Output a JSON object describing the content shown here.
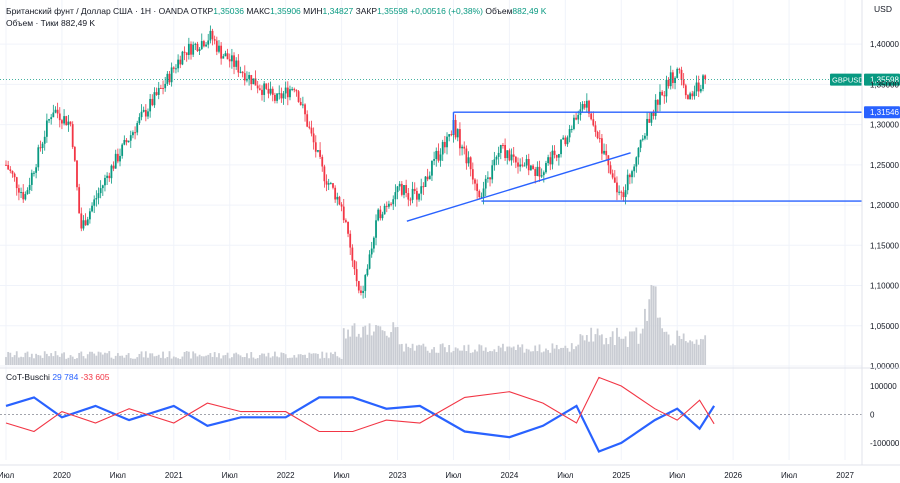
{
  "header": {
    "symbol_line": "Британский фунт / Доллар США · 1Н · OANDA",
    "open_label": "ОТКР",
    "open": "1,35036",
    "high_label": "МАКС",
    "high": "1,35906",
    "low_label": "МИН",
    "low": "1,34827",
    "close_label": "ЗАКР",
    "close": "1,35598",
    "change": "+0,00516 (+0,38%)",
    "volume_label": "Объем",
    "volume": "882,49 K",
    "volume_line_label": "Объем · Тики",
    "volume_line_value": "882,49 K"
  },
  "currency": "USD",
  "indicator": {
    "name": "CoT-Buschi",
    "v1": "29 784",
    "v2": "-33 605"
  },
  "colors": {
    "up": "#089981",
    "down": "#f23645",
    "line": "#2962ff",
    "indicator_blue": "#2962ff",
    "indicator_red": "#f23645",
    "volume": "#c9ccd3"
  },
  "chart_data": [
    {
      "type": "candlestick",
      "symbol": "GBPUSD",
      "timeframe": "1Н",
      "x_ticks": [
        "Июл",
        "2020",
        "Июл",
        "2021",
        "Июл",
        "2022",
        "Июл",
        "2023",
        "Июл",
        "2024",
        "Июл",
        "2025",
        "Июл",
        "2026",
        "Июл",
        "2027",
        "Июл"
      ],
      "y_ticks": [
        "1,40000",
        "1,35000",
        "1,30000",
        "1,25000",
        "1,20000",
        "1,15000",
        "1,10000",
        "1,05000",
        "1,00000"
      ],
      "ylim": [
        0.995,
        1.44
      ],
      "price_path": [
        [
          "2019-07",
          1.25
        ],
        [
          "2019-09",
          1.21
        ],
        [
          "2019-12",
          1.32
        ],
        [
          "2020-02",
          1.3
        ],
        [
          "2020-03",
          1.17
        ],
        [
          "2020-06",
          1.24
        ],
        [
          "2020-09",
          1.3
        ],
        [
          "2020-12",
          1.35
        ],
        [
          "2021-02",
          1.39
        ],
        [
          "2021-05",
          1.41
        ],
        [
          "2021-06",
          1.39
        ],
        [
          "2021-09",
          1.36
        ],
        [
          "2021-12",
          1.33
        ],
        [
          "2022-02",
          1.35
        ],
        [
          "2022-05",
          1.24
        ],
        [
          "2022-07",
          1.2
        ],
        [
          "2022-09",
          1.08
        ],
        [
          "2022-11",
          1.19
        ],
        [
          "2023-01",
          1.22
        ],
        [
          "2023-03",
          1.21
        ],
        [
          "2023-07",
          1.3
        ],
        [
          "2023-10",
          1.21
        ],
        [
          "2023-12",
          1.27
        ],
        [
          "2024-04",
          1.24
        ],
        [
          "2024-07",
          1.28
        ],
        [
          "2024-09",
          1.33
        ],
        [
          "2024-10",
          1.3
        ],
        [
          "2025-01",
          1.21
        ],
        [
          "2025-04",
          1.31
        ],
        [
          "2025-07",
          1.37
        ],
        [
          "2025-08",
          1.33
        ],
        [
          "2025-10",
          1.35598
        ]
      ],
      "lines": [
        {
          "name": "resistance",
          "y": 1.31546,
          "from": "2023-07",
          "to": "end",
          "label": "1,31546"
        },
        {
          "name": "support",
          "y": 1.205,
          "from": "2023-10",
          "to": "end"
        },
        {
          "name": "trendline",
          "from": [
            "2023-02",
            1.18
          ],
          "to": [
            "2025-02",
            1.265
          ]
        }
      ],
      "last_price": {
        "label": "GBPUSD",
        "value": "1,35598"
      }
    },
    {
      "type": "line",
      "name": "CoT-Buschi",
      "y_ticks": [
        "100000",
        "0",
        "-100000"
      ],
      "ylim": [
        -160000,
        135000
      ],
      "series": [
        {
          "color": "#2962ff",
          "points": [
            [
              2019.5,
              30000
            ],
            [
              2019.75,
              60000
            ],
            [
              2020.0,
              -10000
            ],
            [
              2020.3,
              30000
            ],
            [
              2020.6,
              -20000
            ],
            [
              2021.0,
              30000
            ],
            [
              2021.3,
              -40000
            ],
            [
              2021.6,
              -10000
            ],
            [
              2022.0,
              -10000
            ],
            [
              2022.3,
              60000
            ],
            [
              2022.6,
              60000
            ],
            [
              2022.9,
              20000
            ],
            [
              2023.2,
              30000
            ],
            [
              2023.6,
              -60000
            ],
            [
              2024.0,
              -80000
            ],
            [
              2024.3,
              -40000
            ],
            [
              2024.6,
              30000
            ],
            [
              2024.8,
              -130000
            ],
            [
              2025.0,
              -100000
            ],
            [
              2025.3,
              -20000
            ],
            [
              2025.5,
              20000
            ],
            [
              2025.7,
              -50000
            ],
            [
              2025.83,
              30000
            ]
          ]
        },
        {
          "color": "#f23645",
          "points": [
            [
              2019.5,
              -30000
            ],
            [
              2019.75,
              -60000
            ],
            [
              2020.0,
              10000
            ],
            [
              2020.3,
              -30000
            ],
            [
              2020.6,
              20000
            ],
            [
              2021.0,
              -30000
            ],
            [
              2021.3,
              40000
            ],
            [
              2021.6,
              10000
            ],
            [
              2022.0,
              10000
            ],
            [
              2022.3,
              -60000
            ],
            [
              2022.6,
              -60000
            ],
            [
              2022.9,
              -20000
            ],
            [
              2023.2,
              -30000
            ],
            [
              2023.6,
              60000
            ],
            [
              2024.0,
              80000
            ],
            [
              2024.3,
              40000
            ],
            [
              2024.6,
              -30000
            ],
            [
              2024.8,
              130000
            ],
            [
              2025.0,
              100000
            ],
            [
              2025.3,
              20000
            ],
            [
              2025.5,
              -20000
            ],
            [
              2025.7,
              50000
            ],
            [
              2025.83,
              -33000
            ]
          ]
        }
      ]
    }
  ]
}
